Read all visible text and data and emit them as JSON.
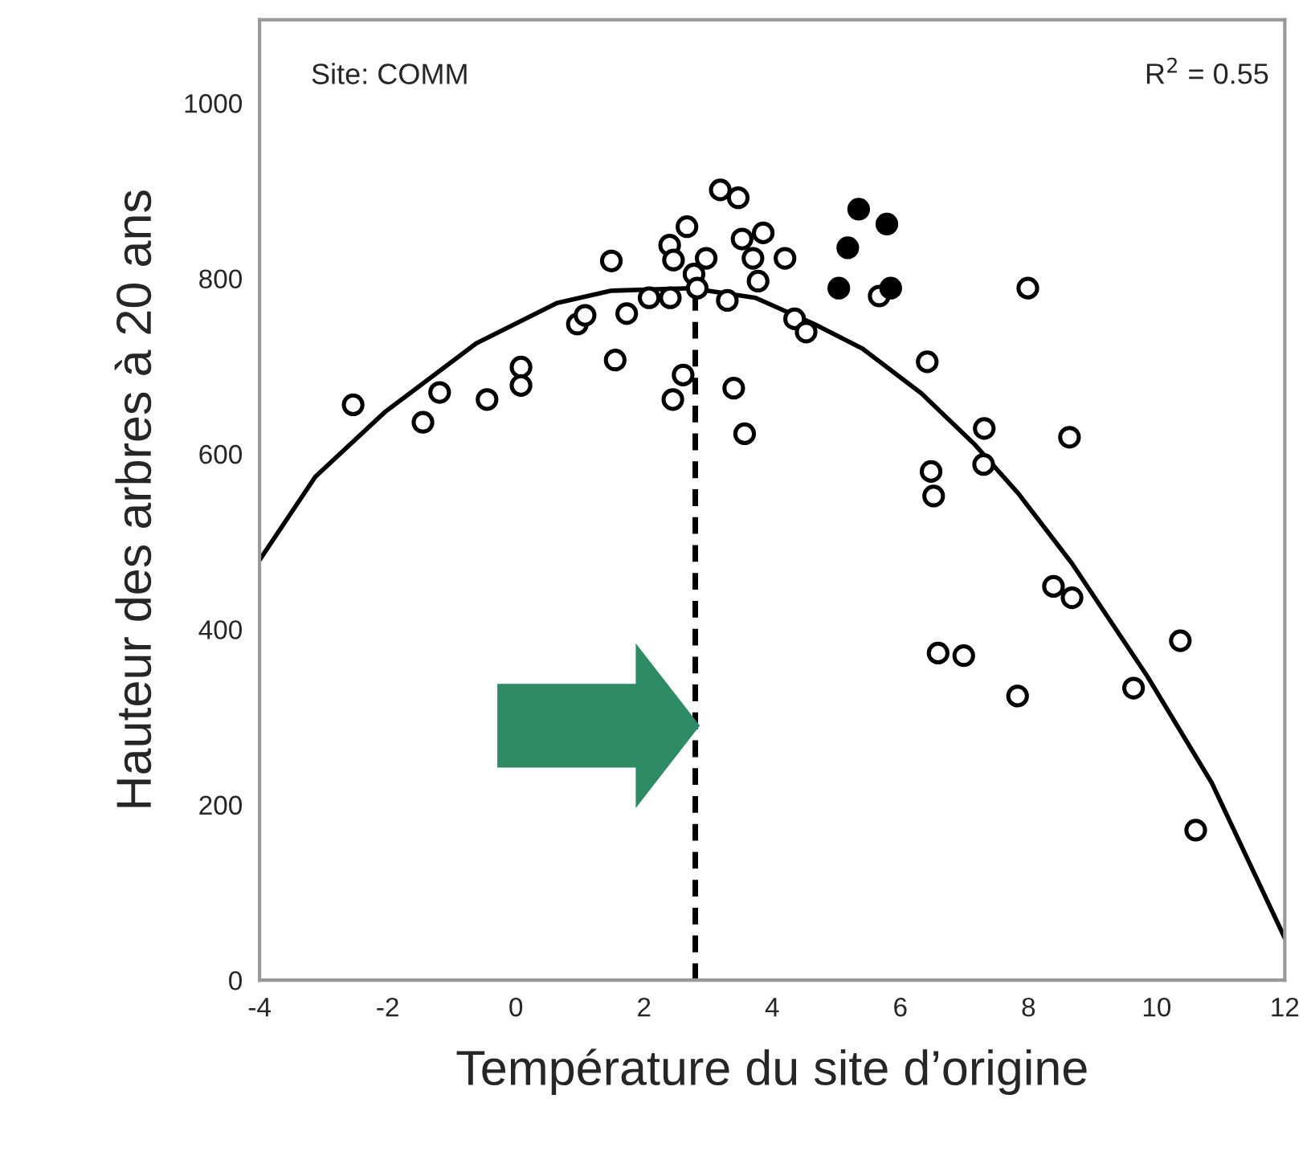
{
  "chart_data": {
    "type": "scatter",
    "xlabel": "Température du site d’origine",
    "ylabel": "Hauteur des arbres à 20 ans",
    "annotations": [
      "Site: COMM",
      "R$^{2}$ = 0.55"
    ],
    "xlim": [
      -4,
      12
    ],
    "xticks": [
      -4,
      -2,
      0,
      2,
      4,
      6,
      8,
      10,
      12
    ],
    "ylim": [
      0,
      1095
    ],
    "yticks": [
      0,
      200,
      400,
      600,
      800,
      1000
    ],
    "grid": false,
    "legend": false,
    "ref_lines": [
      {
        "axis": "x",
        "value": 2.8,
        "color": "#000000",
        "line_style": "dashed"
      }
    ],
    "series": [
      {
        "color": "#000000",
        "marker": "circle",
        "x": [
          -2.54,
          -1.45,
          -1.19,
          -0.45,
          0.08,
          0.08,
          0.96,
          1.08,
          1.49,
          1.55,
          1.73,
          2.08,
          2.41,
          2.4,
          2.46,
          2.67,
          2.61,
          2.45,
          2.78,
          2.83,
          2.97,
          3.3,
          3.19,
          3.47,
          3.4,
          3.57,
          3.53,
          3.86,
          3.7,
          4.2,
          3.78,
          4.35,
          4.53,
          5.67,
          7.99,
          6.42,
          7.31,
          7.3,
          8.64,
          6.48,
          6.52,
          8.39,
          8.68,
          10.37,
          6.59,
          6.99,
          9.64,
          7.83,
          10.61
        ],
        "values": [
          656,
          636,
          670,
          662,
          699,
          678,
          748,
          758,
          820,
          707,
          760,
          778,
          778,
          838,
          821,
          859,
          690,
          662,
          805,
          789,
          823,
          775,
          901,
          892,
          675,
          623,
          845,
          852,
          823,
          823,
          797,
          754,
          739,
          780,
          789,
          705,
          629,
          588,
          619,
          580,
          552,
          449,
          436,
          387,
          373,
          370,
          333,
          324,
          171
        ]
      },
      {
        "color": "#000000",
        "marker": "circle",
        "x": [
          5.35,
          5.79,
          5.18,
          5.04,
          5.85
        ],
        "values": [
          879,
          862,
          835,
          789,
          789
        ]
      },
      {
        "type": "line",
        "color": "#000000",
        "marker": "none",
        "x": [
          -4,
          -3.13,
          -2.04,
          -0.62,
          0.64,
          1.48,
          2.73,
          3.74,
          4.66,
          5.41,
          6.33,
          7.17,
          7.84,
          8.68,
          9.85,
          10.86,
          12
        ],
        "values": [
          479,
          574,
          648,
          726,
          772,
          786,
          789,
          778,
          748,
          720,
          669,
          610,
          555,
          475,
          347,
          225,
          48
        ]
      }
    ]
  }
}
